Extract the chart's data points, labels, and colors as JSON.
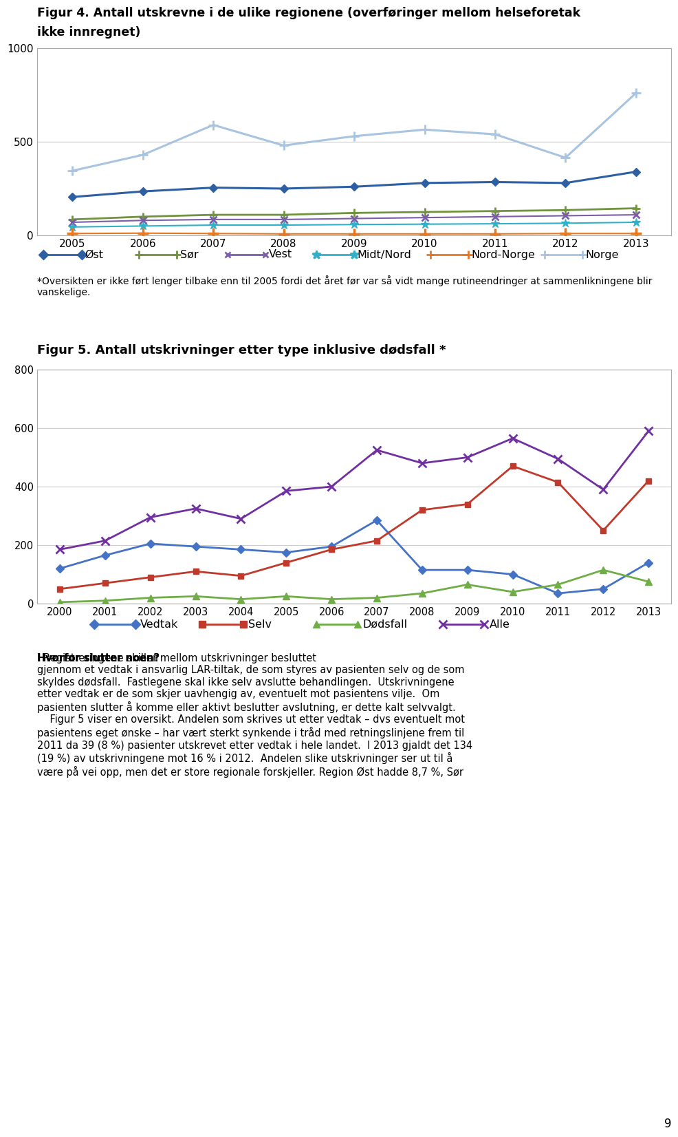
{
  "fig4_title_line1": "Figur 4. Antall utskrevne i de ulike regionene (overføringer mellom helseforetak",
  "fig4_title_line2": "ikke innregnet)",
  "fig4_years": [
    2005,
    2006,
    2007,
    2008,
    2009,
    2010,
    2011,
    2012,
    2013
  ],
  "fig4_ost": [
    205,
    235,
    255,
    250,
    260,
    280,
    285,
    280,
    340
  ],
  "fig4_sor": [
    85,
    100,
    110,
    110,
    120,
    125,
    130,
    135,
    145
  ],
  "fig4_vest": [
    70,
    80,
    85,
    85,
    90,
    95,
    100,
    105,
    110
  ],
  "fig4_midt_nord": [
    45,
    50,
    55,
    55,
    58,
    60,
    62,
    65,
    70
  ],
  "fig4_nord_norge": [
    10,
    12,
    10,
    8,
    8,
    8,
    8,
    10,
    10
  ],
  "fig4_norge": [
    345,
    430,
    590,
    480,
    530,
    565,
    540,
    415,
    760
  ],
  "fig4_ylim": [
    0,
    1000
  ],
  "fig4_yticks": [
    0,
    500,
    1000
  ],
  "fig4_note": "*Oversikten er ikke ført lenger tilbake enn til 2005 fordi det året før var så vidt mange rutineendringer at sammenlikningene blir vanskelige.",
  "fig5_title": "Figur 5. Antall utskrivninger etter type inklusive dødsfall *",
  "fig5_years": [
    2000,
    2001,
    2002,
    2003,
    2004,
    2005,
    2006,
    2007,
    2008,
    2009,
    2010,
    2011,
    2012,
    2013
  ],
  "fig5_vedtak": [
    120,
    165,
    205,
    195,
    185,
    175,
    195,
    285,
    115,
    115,
    100,
    35,
    50,
    140
  ],
  "fig5_selv": [
    50,
    70,
    90,
    110,
    95,
    140,
    185,
    215,
    320,
    340,
    470,
    415,
    250,
    420
  ],
  "fig5_dodsfall": [
    5,
    10,
    20,
    25,
    15,
    25,
    15,
    20,
    35,
    65,
    40,
    65,
    115,
    75
  ],
  "fig5_alle": [
    185,
    215,
    295,
    325,
    290,
    385,
    400,
    525,
    480,
    500,
    565,
    495,
    390,
    590
  ],
  "fig5_ylim": [
    0,
    800
  ],
  "fig5_yticks": [
    0,
    200,
    400,
    600,
    800
  ],
  "bottom_text_bold": "Hvorfor slutter noen?",
  "bottom_text_normal": "  Registreringene skiller mellom utskrivninger besluttet gjennom et vedtak i ansvarlig LAR-tiltak, de som styres av pasienten selv og de som skyldes dødsfall.  Fastlegene skal ikke selv avslutte behandlingen.  Utskrivningene etter vedtak er de som skjer uavhengig av, eventuelt mot pasientens vilje.  Om pasienten slutter å komme eller aktivt beslutter avslutning, er dette kalt selvvalgt.\n    Figur 5 viser en oversikt. Andelen som skrives ut etter vedtak – dvs eventuelt mot pasientens eget ønske – har vært sterkt synkende i tråd med retningslinjene frem til 2011 da 39 (8 %) pasienter utskrevet etter vedtak i hele landet.  I 2013 gjaldt det 134 (19 %) av utskrivningene mot 16 % i 2012.  Andelen slike utskrivninger ser ut til å være på vei opp, men det er store regionale forskjeller. Region Øst hadde 8,7 %, Sør",
  "page_number": "9",
  "colors_fig4": {
    "ost": "#2e5fa3",
    "sor": "#70933e",
    "vest": "#7b5ea7",
    "midt_nord": "#31b0c8",
    "nord_norge": "#e87722",
    "norge": "#a9c4e0"
  },
  "colors_fig5": {
    "vedtak": "#4472c4",
    "selv": "#c0392b",
    "dodsfall": "#70ad47",
    "alle": "#7030a0"
  },
  "chart_border_color": "#aaaaaa",
  "grid_color": "#cccccc"
}
